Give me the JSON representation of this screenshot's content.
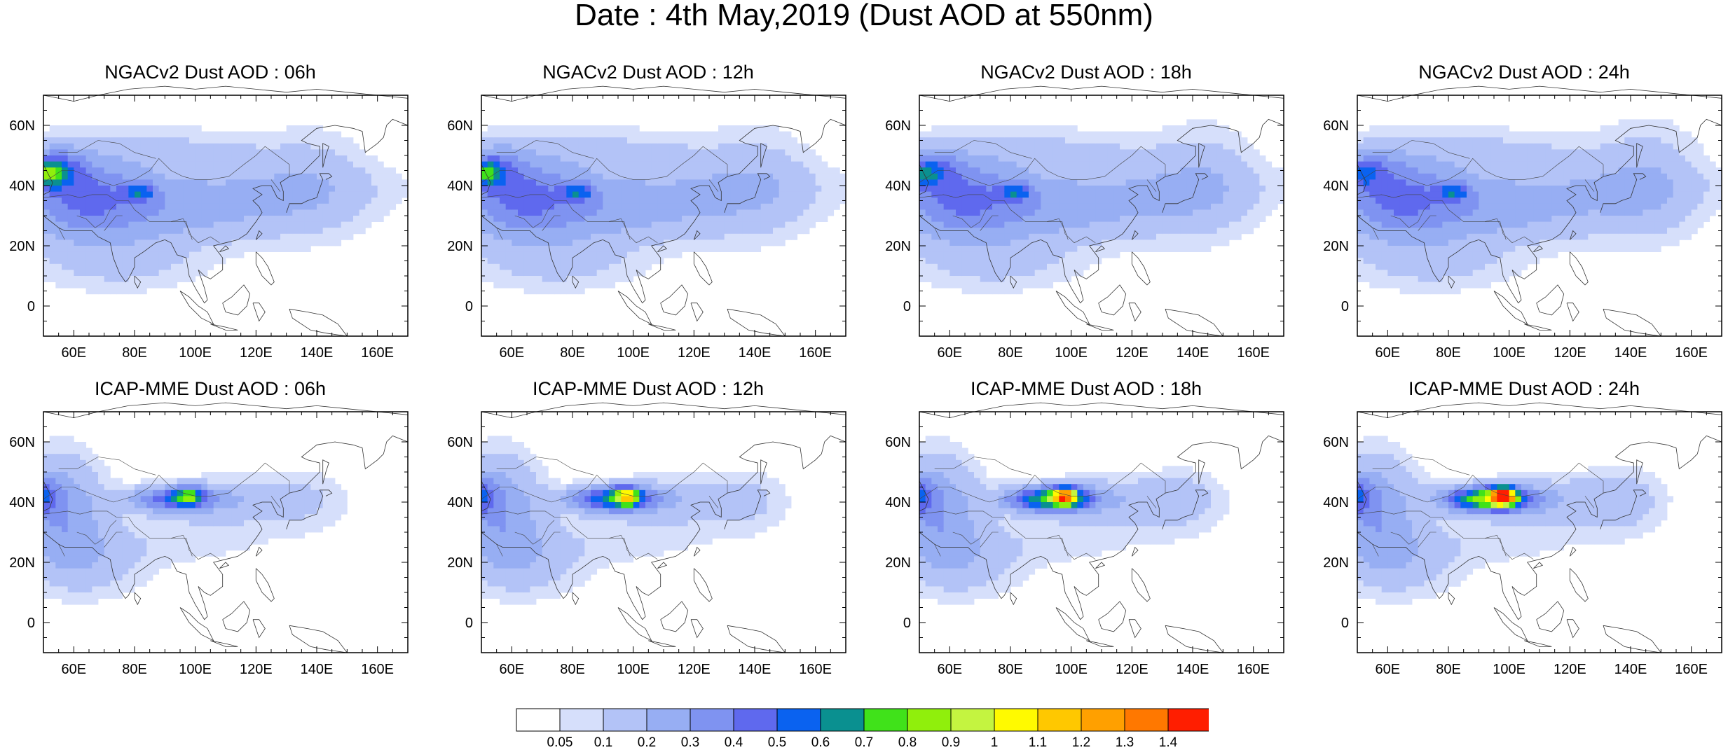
{
  "title": "Date : 4th May,2019 (Dust AOD at 550nm)",
  "lon_ticks": [
    "60E",
    "80E",
    "100E",
    "120E",
    "140E",
    "160E"
  ],
  "lat_ticks": [
    "60N",
    "40N",
    "20N",
    "0"
  ],
  "panels": [
    {
      "title": "NGACv2 Dust AOD : 06h",
      "model": "NGACv2",
      "hour": 6
    },
    {
      "title": "NGACv2 Dust AOD : 12h",
      "model": "NGACv2",
      "hour": 12
    },
    {
      "title": "NGACv2 Dust AOD : 18h",
      "model": "NGACv2",
      "hour": 18
    },
    {
      "title": "NGACv2 Dust AOD : 24h",
      "model": "NGACv2",
      "hour": 24
    },
    {
      "title": "ICAP-MME Dust AOD : 06h",
      "model": "ICAP-MME",
      "hour": 6
    },
    {
      "title": "ICAP-MME Dust AOD : 12h",
      "model": "ICAP-MME",
      "hour": 12
    },
    {
      "title": "ICAP-MME Dust AOD : 18h",
      "model": "ICAP-MME",
      "hour": 18
    },
    {
      "title": "ICAP-MME Dust AOD : 24h",
      "model": "ICAP-MME",
      "hour": 24
    }
  ],
  "colorbar": {
    "labels": [
      "0.05",
      "0.1",
      "0.2",
      "0.3",
      "0.4",
      "0.5",
      "0.6",
      "0.7",
      "0.8",
      "0.9",
      "1",
      "1.1",
      "1.2",
      "1.3",
      "1.4"
    ],
    "colors": [
      "#ffffff",
      "#d6dffb",
      "#b3c3f7",
      "#97aef3",
      "#7f93f1",
      "#5f69ee",
      "#0a62f0",
      "#0a9090",
      "#40e21a",
      "#90ef0c",
      "#c4f440",
      "#fffa00",
      "#ffc800",
      "#ffa000",
      "#ff7800",
      "#ff1e00"
    ]
  }
}
